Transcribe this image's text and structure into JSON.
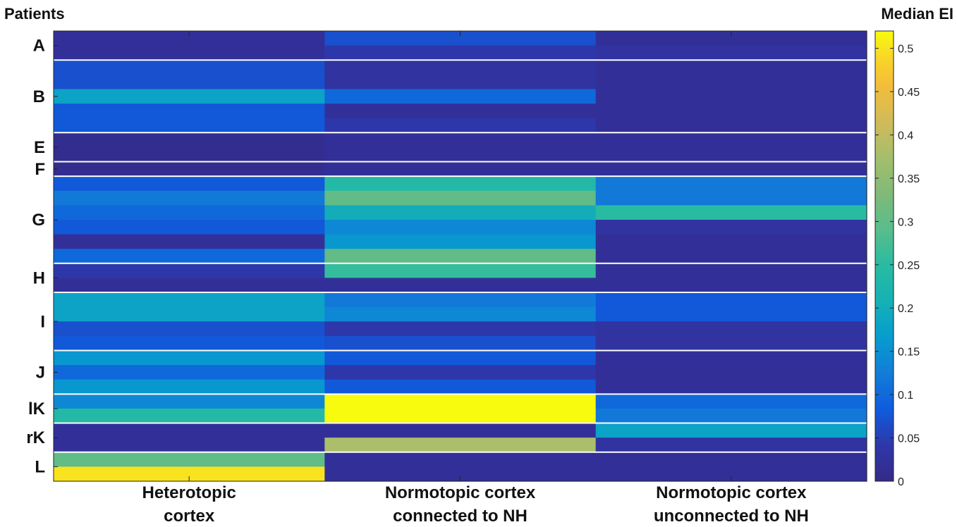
{
  "chart_data": {
    "type": "heatmap",
    "title": "",
    "ylabel": "Patients",
    "colorbar_label": "Median EI",
    "colormap": "parula",
    "clim": [
      0,
      0.52
    ],
    "colorbar_ticks": [
      "0",
      "0.05",
      "0.1",
      "0.15",
      "0.2",
      "0.25",
      "0.3",
      "0.35",
      "0.4",
      "0.45",
      "0.5"
    ],
    "colorbar_tick_values": [
      0,
      0.05,
      0.1,
      0.15,
      0.2,
      0.25,
      0.3,
      0.35,
      0.4,
      0.45,
      0.5
    ],
    "columns": [
      [
        "Heterotopic",
        "cortex"
      ],
      [
        "Normotopic cortex",
        "connected to NH"
      ],
      [
        "Normotopic cortex",
        "unconnected to NH"
      ]
    ],
    "patients": [
      "A",
      "B",
      "E",
      "F",
      "G",
      "H",
      "I",
      "J",
      "lK",
      "rK",
      "L"
    ],
    "rows_per_patient": [
      2,
      5,
      2,
      1,
      6,
      2,
      4,
      3,
      2,
      2,
      2
    ],
    "grid_lines": true,
    "values": [
      [
        0.02,
        0.07,
        0.02
      ],
      [
        0.02,
        0.04,
        0.03
      ],
      [
        0.07,
        0.03,
        0.02
      ],
      [
        0.07,
        0.03,
        0.02
      ],
      [
        0.18,
        0.1,
        0.02
      ],
      [
        0.08,
        0.02,
        0.02
      ],
      [
        0.08,
        0.04,
        0.02
      ],
      [
        0.01,
        0.02,
        0.02
      ],
      [
        0.01,
        0.02,
        0.02
      ],
      [
        0.01,
        0.02,
        0.02
      ],
      [
        0.08,
        0.24,
        0.12
      ],
      [
        0.12,
        0.3,
        0.12
      ],
      [
        0.1,
        0.2,
        0.25
      ],
      [
        0.08,
        0.14,
        0.03
      ],
      [
        0.02,
        0.16,
        0.02
      ],
      [
        0.1,
        0.3,
        0.02
      ],
      [
        0.04,
        0.26,
        0.02
      ],
      [
        0.02,
        0.02,
        0.02
      ],
      [
        0.18,
        0.12,
        0.08
      ],
      [
        0.18,
        0.14,
        0.08
      ],
      [
        0.07,
        0.04,
        0.03
      ],
      [
        0.08,
        0.07,
        0.03
      ],
      [
        0.16,
        0.08,
        0.02
      ],
      [
        0.1,
        0.04,
        0.02
      ],
      [
        0.16,
        0.08,
        0.02
      ],
      [
        0.14,
        0.52,
        0.1
      ],
      [
        0.24,
        0.52,
        0.12
      ],
      [
        0.02,
        0.02,
        0.18
      ],
      [
        0.02,
        0.38,
        0.03
      ],
      [
        0.3,
        0.02,
        0.02
      ],
      [
        0.5,
        0.02,
        0.02
      ]
    ]
  }
}
